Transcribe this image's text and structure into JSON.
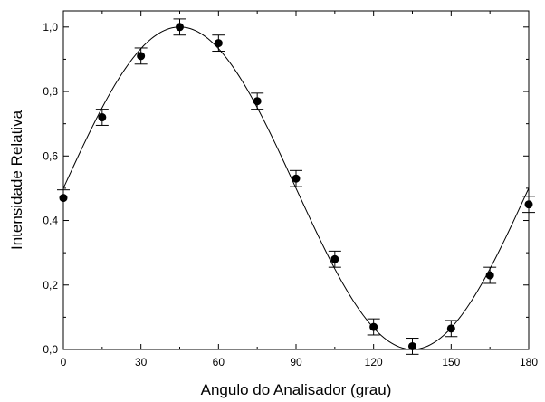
{
  "chart_data": {
    "type": "scatter",
    "xlabel": "Angulo do Analisador (grau)",
    "ylabel": "Intensidade Relativa",
    "xlim": [
      0,
      180
    ],
    "ylim": [
      0,
      1.05
    ],
    "xticks": [
      0,
      30,
      60,
      90,
      120,
      150,
      180
    ],
    "xtick_labels": [
      "0",
      "30",
      "60",
      "90",
      "120",
      "150",
      "180"
    ],
    "yticks": [
      0,
      0.2,
      0.4,
      0.6,
      0.8,
      1.0
    ],
    "ytick_labels": [
      "0,0",
      "0,2",
      "0,4",
      "0,6",
      "0,8",
      "1,0"
    ],
    "grid": false,
    "series": [
      {
        "kind": "points-with-error-bars",
        "x": [
          0,
          15,
          30,
          45,
          60,
          75,
          90,
          105,
          120,
          135,
          150,
          165,
          180
        ],
        "y": [
          0.47,
          0.72,
          0.91,
          1.0,
          0.95,
          0.77,
          0.53,
          0.28,
          0.07,
          0.01,
          0.065,
          0.23,
          0.45
        ],
        "yerr": [
          0.025,
          0.025,
          0.025,
          0.025,
          0.025,
          0.025,
          0.025,
          0.025,
          0.025,
          0.025,
          0.025,
          0.025,
          0.025
        ]
      },
      {
        "kind": "fit-curve",
        "formula": "cos^2(x - 45)",
        "x_range": [
          0,
          180
        ]
      }
    ]
  }
}
